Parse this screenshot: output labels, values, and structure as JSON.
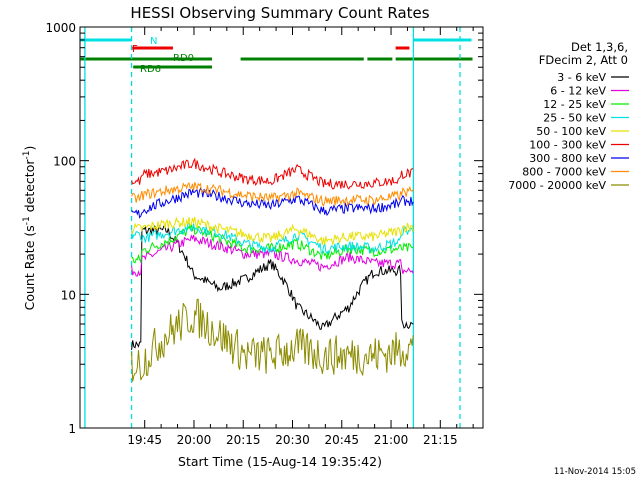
{
  "chart_data": {
    "type": "line",
    "title": "HESSI Observing Summary Count Rates",
    "xlabel": "Start Time (15-Aug-14 19:35:42)",
    "ylabel_main": "Count Rate (s",
    "ylabel_sup1": "-1",
    "ylabel_mid": " detector",
    "ylabel_sup2": "-1",
    "ylabel_end": ")",
    "yscale": "log",
    "ylim": [
      1,
      1000
    ],
    "xlim_minutes": [
      -19.7,
      103
    ],
    "x_ticks": [
      {
        "m": 0,
        "label": "19:45"
      },
      {
        "m": 15,
        "label": "20:00"
      },
      {
        "m": 30,
        "label": "20:15"
      },
      {
        "m": 45,
        "label": "20:30"
      },
      {
        "m": 60,
        "label": "20:45"
      },
      {
        "m": 75,
        "label": "21:00"
      },
      {
        "m": 90,
        "label": "21:15"
      }
    ],
    "y_ticks": [
      {
        "v": 1,
        "label": "1"
      },
      {
        "v": 10,
        "label": "10"
      },
      {
        "v": 100,
        "label": "100"
      },
      {
        "v": 1000,
        "label": "1000"
      }
    ],
    "legend_header": [
      "Det 1,3,6,",
      "FDecim 2, Att 0"
    ],
    "legend": [
      {
        "name": "3 - 6 keV",
        "color": "#000000"
      },
      {
        "name": "6 - 12 keV",
        "color": "#e000e0"
      },
      {
        "name": "12 - 25 keV",
        "color": "#00ee00"
      },
      {
        "name": "25 - 50 keV",
        "color": "#00e0e0"
      },
      {
        "name": "50 - 100 keV",
        "color": "#e8e000"
      },
      {
        "name": "100 - 300 keV",
        "color": "#ee0000"
      },
      {
        "name": "300 - 800 keV",
        "color": "#0000ee"
      },
      {
        "name": "800 - 7000 keV",
        "color": "#ff8c00"
      },
      {
        "name": "7000 - 20000 keV",
        "color": "#8c8c00"
      }
    ],
    "vlines": [
      {
        "m": -18.2,
        "style": "solid",
        "color": "#00e0e0"
      },
      {
        "m": -4.0,
        "style": "dashed",
        "color": "#00e0e0"
      },
      {
        "m": 81.8,
        "style": "solid",
        "color": "#00e0e0"
      },
      {
        "m": 96.0,
        "style": "dashed",
        "color": "#00e0e0"
      }
    ],
    "flags": [
      {
        "label": "N",
        "color": "#00e0e0",
        "row": 0,
        "segments": [
          [
            -19.5,
            -4.0
          ],
          [
            81.8,
            99.5
          ]
        ]
      },
      {
        "label": "F",
        "color": "#ee0000",
        "row": 1,
        "segments": [
          [
            -3.8,
            8.6
          ],
          [
            76.4,
            80.6
          ]
        ]
      },
      {
        "label": "RD0",
        "color": "#008000",
        "row": 2,
        "segments": [
          [
            -19.5,
            20.5
          ],
          [
            29.2,
            66.7
          ],
          [
            67.8,
            75.4
          ],
          [
            76.4,
            99.8
          ]
        ]
      },
      {
        "label": "RD6",
        "color": "#008000",
        "row": 3,
        "segments": [
          [
            -3.5,
            20.5
          ]
        ]
      }
    ],
    "gap_minutes": [
      [
        -19.7,
        -4.0
      ],
      [
        81.8,
        103
      ]
    ],
    "series_levels": {
      "3 - 6 keV": {
        "pre": 4.2,
        "base": [
          30,
          30,
          14,
          11,
          13,
          17,
          8,
          5.5,
          8,
          15,
          15
        ],
        "post": 6
      },
      "6 - 12 keV": {
        "pre": 15,
        "base": [
          18,
          22,
          26,
          23,
          20,
          20,
          18,
          16,
          19,
          17,
          17
        ],
        "post": 15
      },
      "12 - 25 keV": {
        "pre": 18,
        "base": [
          21,
          25,
          31,
          26,
          22,
          22,
          24,
          19,
          22,
          21,
          22
        ],
        "post": 22
      },
      "25 - 50 keV": {
        "pre": 28,
        "base": [
          26,
          29,
          32,
          29,
          24,
          22,
          28,
          22,
          23,
          22,
          25
        ],
        "post": 30
      },
      "50 - 100 keV": {
        "pre": 31,
        "base": [
          31,
          34,
          35,
          31,
          28,
          26,
          31,
          25,
          27,
          27,
          30
        ],
        "post": 32
      },
      "100 - 300 keV": {
        "pre": 70,
        "base": [
          78,
          84,
          96,
          82,
          73,
          70,
          86,
          67,
          67,
          68,
          72
        ],
        "post": 80
      },
      "300 - 800 keV": {
        "pre": 40,
        "base": [
          42,
          50,
          58,
          54,
          48,
          46,
          52,
          42,
          44,
          44,
          48
        ],
        "post": 50
      },
      "800 - 7000 keV": {
        "pre": 52,
        "base": [
          55,
          60,
          64,
          60,
          55,
          52,
          57,
          50,
          51,
          51,
          55
        ],
        "post": 58
      },
      "7000 - 20000 keV": {
        "pre": 3,
        "base": [
          3,
          5,
          7,
          5,
          3.5,
          3.5,
          4,
          3.5,
          3.5,
          3.5,
          3.8
        ],
        "post": 4
      }
    },
    "footer_date": "11-Nov-2014 15:05"
  }
}
